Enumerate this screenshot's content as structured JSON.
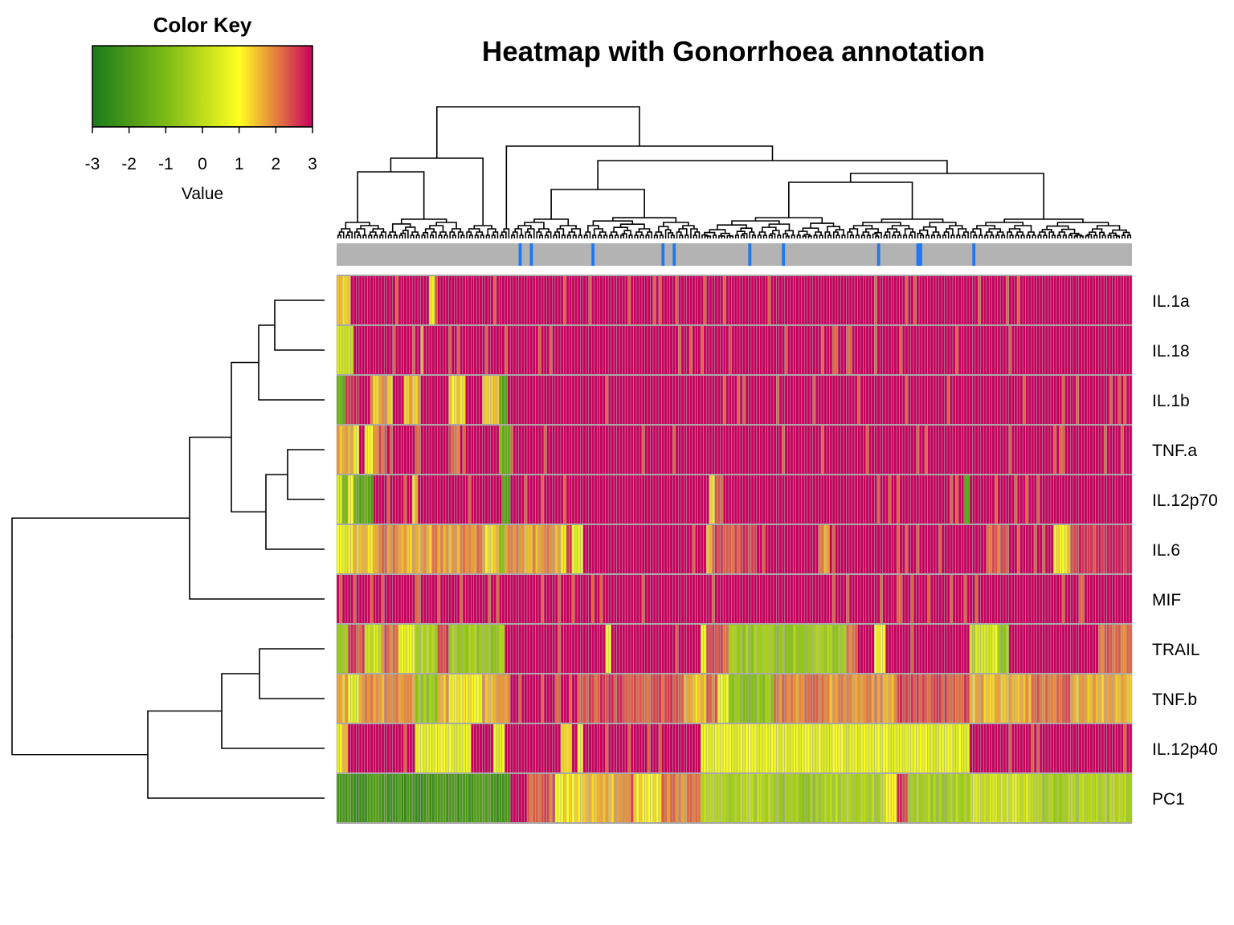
{
  "chart_data": {
    "type": "heatmap",
    "title": "Heatmap with Gonorrhoea annotation",
    "color_key": {
      "title": "Color Key",
      "label": "Value",
      "ticks": [
        "-3",
        "-2",
        "-1",
        "0",
        "1",
        "2",
        "3"
      ],
      "range": [
        -3,
        3
      ],
      "colors": [
        "#1a7a1a",
        "#7cba14",
        "#ffff22",
        "#c8005e"
      ]
    },
    "rows": [
      "IL.1a",
      "IL.18",
      "IL.1b",
      "TNF.a",
      "IL.12p70",
      "IL.6",
      "MIF",
      "TRAIL",
      "TNF.b",
      "IL.12p40",
      "PC1"
    ],
    "n_columns": 284,
    "annotation": {
      "base_color": "#b3b3b3",
      "highlight_color": "#1f77f2",
      "highlighted_columns": [
        65,
        69,
        91,
        116,
        120,
        147,
        159,
        193,
        207,
        208,
        227
      ]
    },
    "row_segments": [
      [
        [
          0,
          5,
          1.5
        ],
        [
          5,
          33,
          3
        ],
        [
          33,
          35,
          0.8
        ],
        [
          35,
          36,
          2.5
        ],
        [
          36,
          284,
          3
        ]
      ],
      [
        [
          0,
          6,
          0.2
        ],
        [
          6,
          30,
          3
        ],
        [
          30,
          31,
          1.6
        ],
        [
          31,
          140,
          3
        ],
        [
          140,
          141,
          2.5
        ],
        [
          141,
          284,
          3
        ]
      ],
      [
        [
          0,
          3,
          -1.5
        ],
        [
          3,
          8,
          2.5
        ],
        [
          8,
          12,
          3
        ],
        [
          12,
          20,
          1.6
        ],
        [
          20,
          24,
          3
        ],
        [
          24,
          30,
          1.6
        ],
        [
          30,
          40,
          3
        ],
        [
          40,
          46,
          1.4
        ],
        [
          46,
          52,
          3
        ],
        [
          52,
          58,
          1.6
        ],
        [
          58,
          61,
          -1.5
        ],
        [
          61,
          284,
          3
        ]
      ],
      [
        [
          0,
          6,
          1.5
        ],
        [
          6,
          8,
          0.8
        ],
        [
          8,
          10,
          3
        ],
        [
          10,
          13,
          0.8
        ],
        [
          13,
          18,
          2.2
        ],
        [
          18,
          28,
          3
        ],
        [
          28,
          30,
          2
        ],
        [
          30,
          40,
          3
        ],
        [
          40,
          44,
          2.2
        ],
        [
          44,
          58,
          3
        ],
        [
          58,
          62,
          -1.3
        ],
        [
          62,
          284,
          3
        ]
      ],
      [
        [
          0,
          2,
          0.6
        ],
        [
          2,
          4,
          -1.4
        ],
        [
          4,
          6,
          0.8
        ],
        [
          6,
          13,
          -1.5
        ],
        [
          13,
          27,
          3
        ],
        [
          27,
          29,
          1.6
        ],
        [
          29,
          59,
          3
        ],
        [
          59,
          62,
          -1.5
        ],
        [
          62,
          133,
          3
        ],
        [
          133,
          135,
          1.2
        ],
        [
          135,
          138,
          2.4
        ],
        [
          138,
          224,
          3
        ],
        [
          224,
          226,
          -1.5
        ],
        [
          226,
          284,
          3
        ]
      ],
      [
        [
          0,
          4,
          0.8
        ],
        [
          4,
          14,
          1.4
        ],
        [
          14,
          22,
          2
        ],
        [
          22,
          34,
          1.6
        ],
        [
          34,
          44,
          1.8
        ],
        [
          44,
          52,
          2
        ],
        [
          52,
          58,
          1.4
        ],
        [
          58,
          60,
          -0.8
        ],
        [
          60,
          80,
          1.8
        ],
        [
          80,
          82,
          0.8
        ],
        [
          82,
          84,
          2.6
        ],
        [
          84,
          88,
          0.8
        ],
        [
          88,
          132,
          3
        ],
        [
          132,
          134,
          1.4
        ],
        [
          134,
          150,
          2.4
        ],
        [
          150,
          172,
          3
        ],
        [
          172,
          176,
          1.8
        ],
        [
          176,
          232,
          3
        ],
        [
          232,
          240,
          2.2
        ],
        [
          240,
          256,
          3
        ],
        [
          256,
          262,
          1.2
        ],
        [
          262,
          284,
          2.6
        ]
      ],
      [
        [
          0,
          284,
          3
        ]
      ],
      [
        [
          0,
          4,
          -0.5
        ],
        [
          4,
          10,
          2.4
        ],
        [
          10,
          16,
          0.2
        ],
        [
          16,
          22,
          2.2
        ],
        [
          22,
          28,
          0.6
        ],
        [
          28,
          36,
          -0.3
        ],
        [
          36,
          40,
          2.4
        ],
        [
          40,
          60,
          -0.5
        ],
        [
          60,
          62,
          3
        ],
        [
          62,
          96,
          3
        ],
        [
          96,
          98,
          1
        ],
        [
          98,
          130,
          3
        ],
        [
          130,
          132,
          0.8
        ],
        [
          132,
          140,
          2.4
        ],
        [
          140,
          182,
          -0.5
        ],
        [
          182,
          186,
          2.2
        ],
        [
          186,
          192,
          3
        ],
        [
          192,
          196,
          1
        ],
        [
          196,
          210,
          3
        ],
        [
          210,
          226,
          3
        ],
        [
          226,
          228,
          0
        ],
        [
          228,
          236,
          0.6
        ],
        [
          236,
          240,
          -0.5
        ],
        [
          240,
          272,
          3
        ],
        [
          272,
          284,
          2.2
        ]
      ],
      [
        [
          0,
          4,
          1.6
        ],
        [
          4,
          8,
          0.8
        ],
        [
          8,
          28,
          1.8
        ],
        [
          28,
          36,
          -0.5
        ],
        [
          36,
          40,
          1.6
        ],
        [
          40,
          52,
          1
        ],
        [
          52,
          62,
          1.6
        ],
        [
          62,
          86,
          3
        ],
        [
          86,
          124,
          2.4
        ],
        [
          124,
          132,
          1.4
        ],
        [
          132,
          136,
          2.2
        ],
        [
          136,
          140,
          0.8
        ],
        [
          140,
          156,
          -0.6
        ],
        [
          156,
          176,
          2
        ],
        [
          176,
          200,
          1.8
        ],
        [
          200,
          226,
          2.4
        ],
        [
          226,
          248,
          1.6
        ],
        [
          248,
          262,
          2.2
        ],
        [
          262,
          284,
          1.6
        ]
      ],
      [
        [
          0,
          2,
          0.8
        ],
        [
          2,
          4,
          1.6
        ],
        [
          4,
          8,
          3
        ],
        [
          8,
          28,
          3
        ],
        [
          28,
          48,
          0.7
        ],
        [
          48,
          56,
          3
        ],
        [
          56,
          60,
          0.7
        ],
        [
          60,
          80,
          3
        ],
        [
          80,
          84,
          1
        ],
        [
          84,
          86,
          3
        ],
        [
          86,
          88,
          1
        ],
        [
          88,
          130,
          3
        ],
        [
          130,
          166,
          0.7
        ],
        [
          166,
          226,
          0.7
        ],
        [
          226,
          284,
          3
        ]
      ],
      [
        [
          0,
          62,
          -2.1
        ],
        [
          62,
          68,
          3
        ],
        [
          68,
          78,
          2.2
        ],
        [
          78,
          88,
          1.2
        ],
        [
          88,
          102,
          1.6
        ],
        [
          102,
          106,
          2.2
        ],
        [
          106,
          116,
          1.2
        ],
        [
          116,
          130,
          2
        ],
        [
          130,
          158,
          -0.2
        ],
        [
          158,
          172,
          -0.5
        ],
        [
          172,
          196,
          -0.2
        ],
        [
          196,
          200,
          1.2
        ],
        [
          200,
          204,
          2.6
        ],
        [
          204,
          226,
          -0.3
        ],
        [
          226,
          250,
          0.3
        ],
        [
          250,
          260,
          -0.3
        ],
        [
          260,
          284,
          -0.2
        ]
      ]
    ]
  }
}
